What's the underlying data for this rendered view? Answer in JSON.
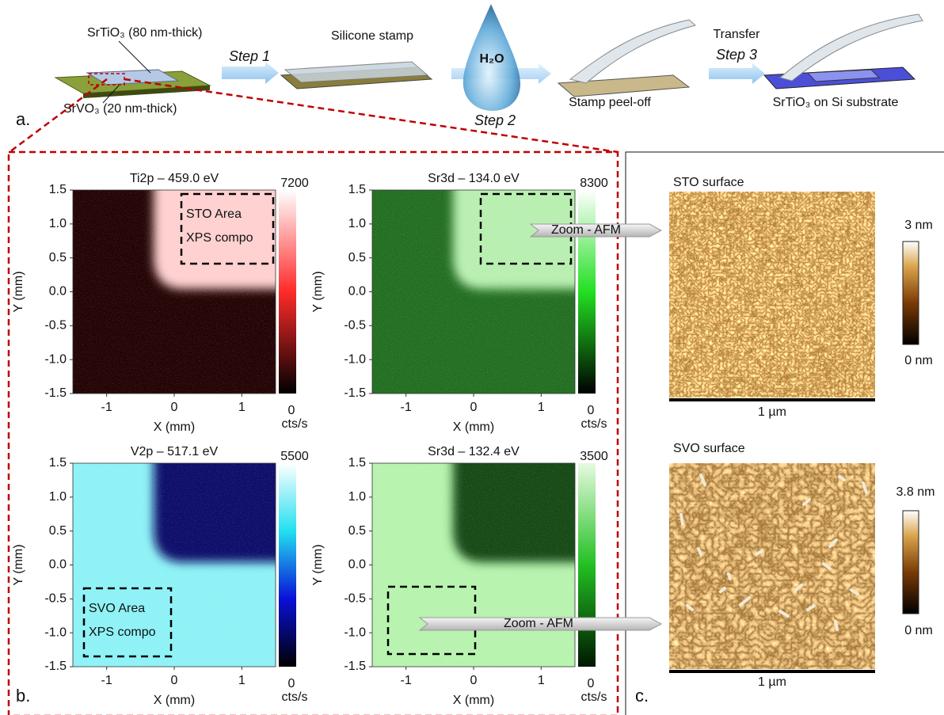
{
  "panel_a": {
    "label": "a.",
    "sto_layer": "SrTiO₃ (80 nm-thick)",
    "svo_layer": "SrVO₃ (20 nm-thick)",
    "step1": "Step 1",
    "stamp": "Silicone stamp",
    "water": "H₂O",
    "step2": "Step 2",
    "peel": "Stamp peel-off",
    "transfer": "Transfer",
    "step3": "Step 3",
    "result": "SrTiO₃ on Si substrate"
  },
  "panel_b": {
    "label": "b.",
    "maps": [
      {
        "title": "Ti2p – 459.0 eV",
        "cbar_max": "7200",
        "cbar_min": "0",
        "cbar_unit": "cts/s",
        "xlabel": "X (mm)",
        "ylabel": "Y (mm)",
        "yticks": [
          "1.5",
          "1.0",
          "0.5",
          "0.0",
          "-0.5",
          "-1.0",
          "-1.5"
        ],
        "xticks": [
          "-1",
          "0",
          "1"
        ],
        "box_text": [
          "STO Area",
          "XPS compo"
        ]
      },
      {
        "title": "Sr3d – 134.0 eV",
        "cbar_max": "8300",
        "cbar_min": "0",
        "cbar_unit": "cts/s",
        "xlabel": "X (mm)",
        "ylabel": "Y (mm)",
        "yticks": [
          "1.5",
          "1.0",
          "0.5",
          "0.0",
          "-0.5",
          "-1.0",
          "-1.5"
        ],
        "xticks": [
          "-1",
          "0",
          "1"
        ]
      },
      {
        "title": "V2p – 517.1 eV",
        "cbar_max": "5500",
        "cbar_min": "0",
        "cbar_unit": "cts/s",
        "xlabel": "X (mm)",
        "ylabel": "Y (mm)",
        "yticks": [
          "1.5",
          "1.0",
          "0.5",
          "0.0",
          "-0.5",
          "-1.0",
          "-1.5"
        ],
        "xticks": [
          "-1",
          "0",
          "1"
        ],
        "box_text": [
          "SVO Area",
          "XPS compo"
        ]
      },
      {
        "title": "Sr3d – 132.4 eV",
        "cbar_max": "3500",
        "cbar_min": "0",
        "cbar_unit": "cts/s",
        "xlabel": "X (mm)",
        "ylabel": "Y (mm)",
        "yticks": [
          "1.5",
          "1.0",
          "0.5",
          "0.0",
          "-0.5",
          "-1.0",
          "-1.5"
        ],
        "xticks": [
          "-1",
          "0",
          "1"
        ]
      }
    ],
    "zoom": [
      "Zoom - AFM",
      "Zoom - AFM"
    ]
  },
  "panel_c": {
    "label": "c.",
    "images": [
      {
        "title": "STO surface",
        "cbar_max": "3 nm",
        "cbar_min": "0 nm",
        "scale": "1 µm"
      },
      {
        "title": "SVO surface",
        "cbar_max": "3.8 nm",
        "cbar_min": "0 nm",
        "scale": "1 µm"
      }
    ]
  }
}
